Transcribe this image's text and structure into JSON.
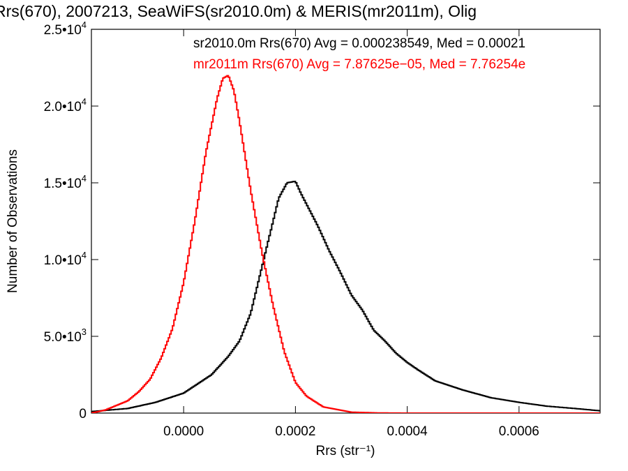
{
  "chart_data": {
    "type": "histogram",
    "title": "Rrs(670), 2007213, SeaWiFS(sr2010.0m) & MERIS(mr2011m), Olig",
    "xlabel": "Rrs (str⁻¹)",
    "ylabel": "Number of Observations",
    "xlim": [
      -0.000165,
      0.000745
    ],
    "ylim": [
      0,
      25000
    ],
    "x_ticks": [
      0.0,
      0.0002,
      0.0004,
      0.0006
    ],
    "x_tick_labels": [
      "0.0000",
      "0.0002",
      "0.0004",
      "0.0006"
    ],
    "y_ticks": [
      {
        "value": 0,
        "mantissa": "0",
        "exponent": ""
      },
      {
        "value": 5000,
        "mantissa": "5.0•10",
        "exponent": "3"
      },
      {
        "value": 10000,
        "mantissa": "1.0•10",
        "exponent": "4"
      },
      {
        "value": 15000,
        "mantissa": "1.5•10",
        "exponent": "4"
      },
      {
        "value": 20000,
        "mantissa": "2.0•10",
        "exponent": "4"
      },
      {
        "value": 25000,
        "mantissa": "2.5•10",
        "exponent": "4"
      }
    ],
    "legend_position": "top-right",
    "series": [
      {
        "name": "sr2010.0m",
        "stat_text": "sr2010.0m Rrs(670) Avg = 0.000238549, Med = 0.00021",
        "color": "#000000",
        "points": [
          [
            -0.000165,
            100
          ],
          [
            -0.0001,
            300
          ],
          [
            -5e-05,
            700
          ],
          [
            0.0,
            1300
          ],
          [
            5e-05,
            2500
          ],
          [
            8e-05,
            3700
          ],
          [
            0.0001,
            4700
          ],
          [
            0.00012,
            6500
          ],
          [
            0.00014,
            9500
          ],
          [
            0.00015,
            11000
          ],
          [
            0.00016,
            12500
          ],
          [
            0.00017,
            14000
          ],
          [
            0.000185,
            15000
          ],
          [
            0.0002,
            15100
          ],
          [
            0.00021,
            14300
          ],
          [
            0.00022,
            13600
          ],
          [
            0.00024,
            12200
          ],
          [
            0.00026,
            10600
          ],
          [
            0.00028,
            9200
          ],
          [
            0.0003,
            7700
          ],
          [
            0.00032,
            6700
          ],
          [
            0.00034,
            5400
          ],
          [
            0.00036,
            4700
          ],
          [
            0.00038,
            3900
          ],
          [
            0.0004,
            3300
          ],
          [
            0.00042,
            2800
          ],
          [
            0.00045,
            2100
          ],
          [
            0.0005,
            1500
          ],
          [
            0.00055,
            1000
          ],
          [
            0.0006,
            700
          ],
          [
            0.00065,
            450
          ],
          [
            0.0007,
            300
          ],
          [
            0.000745,
            150
          ]
        ]
      },
      {
        "name": "mr2011m",
        "stat_text": "mr2011m Rrs(670) Avg = 7.87625e−05, Med = 7.76254e",
        "color": "#ff0000",
        "points": [
          [
            -0.000165,
            0
          ],
          [
            -0.00014,
            200
          ],
          [
            -0.0001,
            800
          ],
          [
            -8e-05,
            1400
          ],
          [
            -6e-05,
            2200
          ],
          [
            -4e-05,
            3600
          ],
          [
            -2e-05,
            5500
          ],
          [
            0.0,
            8500
          ],
          [
            2e-05,
            12500
          ],
          [
            4e-05,
            17000
          ],
          [
            6e-05,
            20500
          ],
          [
            7e-05,
            21800
          ],
          [
            8e-05,
            22000
          ],
          [
            9e-05,
            21000
          ],
          [
            0.0001,
            19000
          ],
          [
            0.00012,
            14500
          ],
          [
            0.00014,
            10500
          ],
          [
            0.00016,
            7000
          ],
          [
            0.00018,
            4000
          ],
          [
            0.0002,
            2000
          ],
          [
            0.00022,
            1100
          ],
          [
            0.00025,
            400
          ],
          [
            0.0003,
            60
          ],
          [
            0.00035,
            10
          ],
          [
            0.0004,
            0
          ],
          [
            0.000745,
            0
          ]
        ]
      }
    ]
  }
}
